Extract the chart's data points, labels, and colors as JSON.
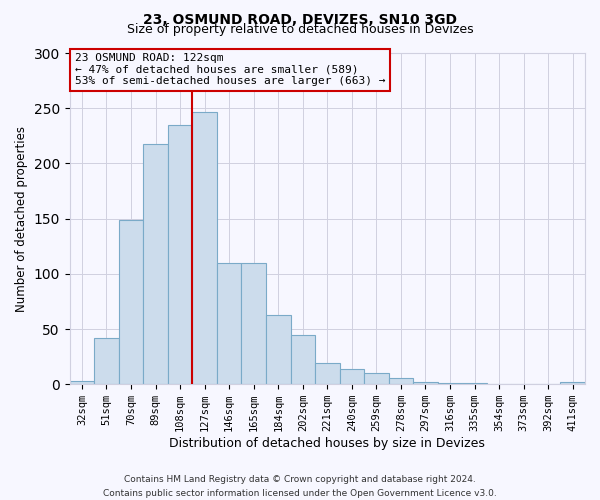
{
  "title1": "23, OSMUND ROAD, DEVIZES, SN10 3GD",
  "title2": "Size of property relative to detached houses in Devizes",
  "xlabel": "Distribution of detached houses by size in Devizes",
  "ylabel": "Number of detached properties",
  "categories": [
    "32sqm",
    "51sqm",
    "70sqm",
    "89sqm",
    "108sqm",
    "127sqm",
    "146sqm",
    "165sqm",
    "184sqm",
    "202sqm",
    "221sqm",
    "240sqm",
    "259sqm",
    "278sqm",
    "297sqm",
    "316sqm",
    "335sqm",
    "354sqm",
    "373sqm",
    "392sqm",
    "411sqm"
  ],
  "bar_values": [
    3,
    42,
    149,
    218,
    235,
    247,
    110,
    110,
    63,
    45,
    19,
    14,
    10,
    6,
    2,
    1,
    1,
    0,
    0,
    0,
    2
  ],
  "bar_color": "#ccdcec",
  "bar_edge_color": "#7aaac8",
  "bar_width": 1.0,
  "vline_x_idx": 4.5,
  "vline_color": "#cc0000",
  "annotation_title": "23 OSMUND ROAD: 122sqm",
  "annotation_line1": "← 47% of detached houses are smaller (589)",
  "annotation_line2": "53% of semi-detached houses are larger (663) →",
  "annotation_box_color": "#cc0000",
  "ylim": [
    0,
    300
  ],
  "yticks": [
    0,
    50,
    100,
    150,
    200,
    250,
    300
  ],
  "footer1": "Contains HM Land Registry data © Crown copyright and database right 2024.",
  "footer2": "Contains public sector information licensed under the Open Government Licence v3.0.",
  "bg_color": "#f7f7ff",
  "grid_color": "#d0d0e0"
}
